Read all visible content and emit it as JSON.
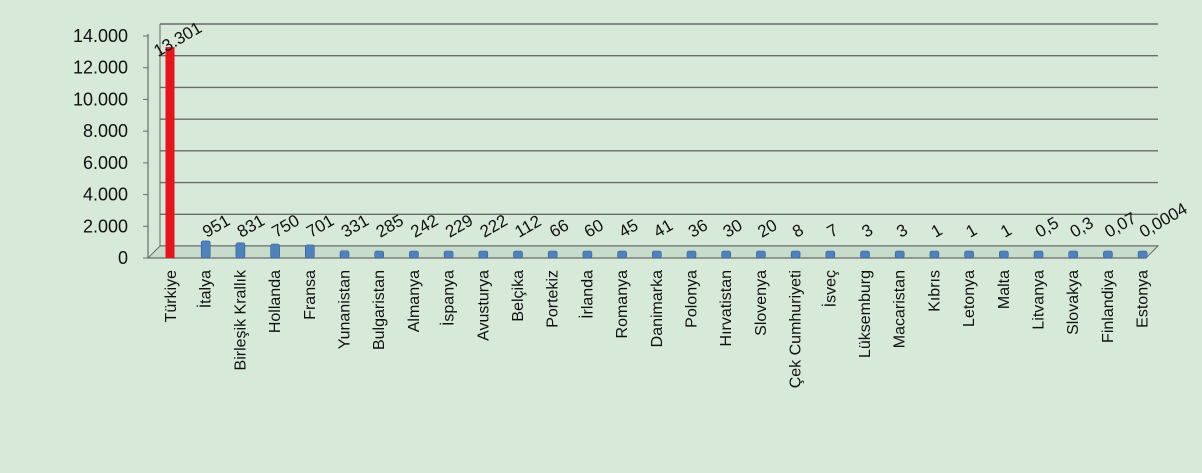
{
  "chart_data": {
    "type": "bar",
    "title": "",
    "xlabel": "",
    "ylabel": "",
    "ylim": [
      0,
      14000
    ],
    "grid": true,
    "legend": "none",
    "y_ticks": [
      "0",
      "2.000",
      "4.000",
      "6.000",
      "8.000",
      "10.000",
      "12.000",
      "14.000"
    ],
    "categories": [
      "Türkiye",
      "İtalya",
      "Birleşik Krallık",
      "Hollanda",
      "Fransa",
      "Yunanistan",
      "Bulgaristan",
      "Almanya",
      "İspanya",
      "Avusturya",
      "Belçika",
      "Portekiz",
      "İrlanda",
      "Romanya",
      "Danimarka",
      "Polonya",
      "Hırvatistan",
      "Slovenya",
      "Çek Cumhuriyeti",
      "İsveç",
      "Lüksemburg",
      "Macaristan",
      "Kıbrıs",
      "Letonya",
      "Malta",
      "Litvanya",
      "Slovakya",
      "Finlandiya",
      "Estonya"
    ],
    "values": [
      13301,
      951,
      831,
      750,
      701,
      331,
      285,
      242,
      229,
      222,
      112,
      66,
      60,
      45,
      41,
      36,
      30,
      20,
      8,
      7,
      3,
      3,
      1,
      1,
      1,
      0.5,
      0.3,
      0.07,
      0.0004
    ],
    "data_labels": [
      "13.301",
      "951",
      "831",
      "750",
      "701",
      "331",
      "285",
      "242",
      "229",
      "222",
      "112",
      "66",
      "60",
      "45",
      "41",
      "36",
      "30",
      "20",
      "8",
      "7",
      "3",
      "3",
      "1",
      "1",
      "1",
      "0,5",
      "0,3",
      "0,07",
      "0,0004"
    ],
    "colors": {
      "highlight": "#e8141c",
      "bar": "#4f81bd",
      "bar_dark": "#2f5d93",
      "grid": "#6b6b6b",
      "background": "#d7ead9"
    }
  }
}
